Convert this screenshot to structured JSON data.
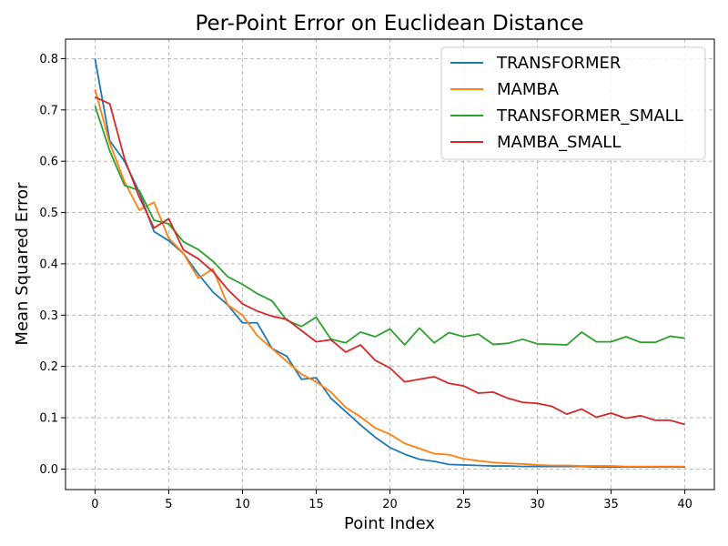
{
  "chart_data": {
    "type": "line",
    "title": "Per-Point Error on Euclidean Distance",
    "xlabel": "Point Index",
    "ylabel": "Mean Squared Error",
    "xlim": [
      -2,
      42
    ],
    "ylim": [
      -0.04,
      0.838
    ],
    "xticks": [
      0,
      5,
      10,
      15,
      20,
      25,
      30,
      35,
      40
    ],
    "yticks": [
      0.0,
      0.1,
      0.2,
      0.3,
      0.4,
      0.5,
      0.6,
      0.7,
      0.8
    ],
    "ytick_labels": [
      "0.0",
      "0.1",
      "0.2",
      "0.3",
      "0.4",
      "0.5",
      "0.6",
      "0.7",
      "0.8"
    ],
    "grid": true,
    "legend_position": "top-right",
    "x": [
      0,
      1,
      2,
      3,
      4,
      5,
      6,
      7,
      8,
      9,
      10,
      11,
      12,
      13,
      14,
      15,
      16,
      17,
      18,
      19,
      20,
      21,
      22,
      23,
      24,
      25,
      26,
      27,
      28,
      29,
      30,
      31,
      32,
      33,
      34,
      35,
      36,
      37,
      38,
      39,
      40
    ],
    "series": [
      {
        "name": "TRANSFORMER",
        "color": "#1f77b4",
        "values": [
          0.8,
          0.64,
          0.6,
          0.54,
          0.463,
          0.445,
          0.42,
          0.38,
          0.345,
          0.32,
          0.285,
          0.285,
          0.235,
          0.22,
          0.175,
          0.178,
          0.138,
          0.112,
          0.086,
          0.062,
          0.042,
          0.029,
          0.019,
          0.015,
          0.009,
          0.008,
          0.007,
          0.006,
          0.006,
          0.005,
          0.005,
          0.005,
          0.005,
          0.005,
          0.004,
          0.004,
          0.004,
          0.004,
          0.004,
          0.004,
          0.004
        ]
      },
      {
        "name": "MAMBA",
        "color": "#ff7f0e",
        "values": [
          0.74,
          0.635,
          0.56,
          0.505,
          0.52,
          0.45,
          0.42,
          0.372,
          0.39,
          0.32,
          0.3,
          0.26,
          0.235,
          0.21,
          0.185,
          0.17,
          0.15,
          0.12,
          0.102,
          0.08,
          0.068,
          0.05,
          0.04,
          0.03,
          0.028,
          0.02,
          0.016,
          0.013,
          0.011,
          0.01,
          0.008,
          0.007,
          0.007,
          0.006,
          0.006,
          0.006,
          0.005,
          0.005,
          0.005,
          0.005,
          0.005
        ]
      },
      {
        "name": "TRANSFORMER_SMALL",
        "color": "#2ca02c",
        "values": [
          0.708,
          0.62,
          0.553,
          0.543,
          0.485,
          0.478,
          0.443,
          0.428,
          0.405,
          0.375,
          0.36,
          0.342,
          0.328,
          0.29,
          0.278,
          0.296,
          0.253,
          0.246,
          0.267,
          0.258,
          0.273,
          0.242,
          0.275,
          0.246,
          0.266,
          0.258,
          0.263,
          0.243,
          0.245,
          0.253,
          0.244,
          0.243,
          0.242,
          0.267,
          0.248,
          0.248,
          0.258,
          0.247,
          0.247,
          0.259,
          0.255
        ]
      },
      {
        "name": "MAMBA_SMALL",
        "color": "#d62728",
        "values": [
          0.725,
          0.712,
          0.605,
          0.53,
          0.47,
          0.488,
          0.427,
          0.41,
          0.385,
          0.35,
          0.322,
          0.308,
          0.298,
          0.292,
          0.27,
          0.248,
          0.252,
          0.228,
          0.242,
          0.212,
          0.197,
          0.17,
          0.175,
          0.18,
          0.167,
          0.162,
          0.148,
          0.15,
          0.138,
          0.13,
          0.128,
          0.122,
          0.107,
          0.117,
          0.101,
          0.109,
          0.099,
          0.104,
          0.095,
          0.095,
          0.087
        ]
      }
    ]
  }
}
